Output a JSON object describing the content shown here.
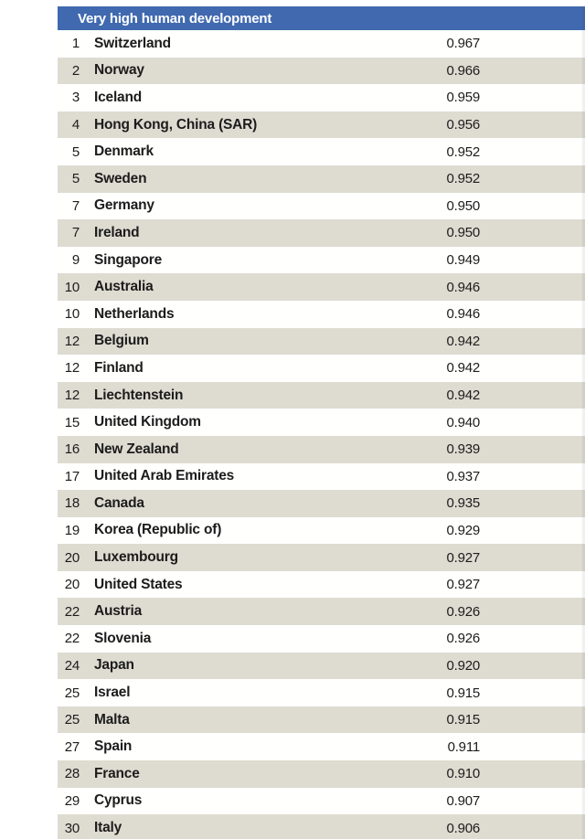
{
  "header": {
    "title": "Very high human development"
  },
  "colors": {
    "header_bg": "#4069af",
    "header_text": "#ffffff",
    "row_bg": "#fffffe",
    "row_alt_bg": "#dedbd1",
    "text": "#1c1c1c"
  },
  "table": {
    "columns": [
      "rank",
      "country",
      "hdi_value"
    ],
    "rows": [
      {
        "rank": "1",
        "country": "Switzerland",
        "value": "0.967"
      },
      {
        "rank": "2",
        "country": "Norway",
        "value": "0.966"
      },
      {
        "rank": "3",
        "country": "Iceland",
        "value": "0.959"
      },
      {
        "rank": "4",
        "country": "Hong Kong, China (SAR)",
        "value": "0.956"
      },
      {
        "rank": "5",
        "country": "Denmark",
        "value": "0.952"
      },
      {
        "rank": "5",
        "country": "Sweden",
        "value": "0.952"
      },
      {
        "rank": "7",
        "country": "Germany",
        "value": "0.950"
      },
      {
        "rank": "7",
        "country": "Ireland",
        "value": "0.950"
      },
      {
        "rank": "9",
        "country": "Singapore",
        "value": "0.949"
      },
      {
        "rank": "10",
        "country": "Australia",
        "value": "0.946"
      },
      {
        "rank": "10",
        "country": "Netherlands",
        "value": "0.946"
      },
      {
        "rank": "12",
        "country": "Belgium",
        "value": "0.942"
      },
      {
        "rank": "12",
        "country": "Finland",
        "value": "0.942"
      },
      {
        "rank": "12",
        "country": "Liechtenstein",
        "value": "0.942"
      },
      {
        "rank": "15",
        "country": "United Kingdom",
        "value": "0.940"
      },
      {
        "rank": "16",
        "country": "New Zealand",
        "value": "0.939"
      },
      {
        "rank": "17",
        "country": "United Arab Emirates",
        "value": "0.937"
      },
      {
        "rank": "18",
        "country": "Canada",
        "value": "0.935"
      },
      {
        "rank": "19",
        "country": "Korea (Republic of)",
        "value": "0.929"
      },
      {
        "rank": "20",
        "country": "Luxembourg",
        "value": "0.927"
      },
      {
        "rank": "20",
        "country": "United States",
        "value": "0.927"
      },
      {
        "rank": "22",
        "country": "Austria",
        "value": "0.926"
      },
      {
        "rank": "22",
        "country": "Slovenia",
        "value": "0.926"
      },
      {
        "rank": "24",
        "country": "Japan",
        "value": "0.920"
      },
      {
        "rank": "25",
        "country": "Israel",
        "value": "0.915"
      },
      {
        "rank": "25",
        "country": "Malta",
        "value": "0.915"
      },
      {
        "rank": "27",
        "country": "Spain",
        "value": "0.911"
      },
      {
        "rank": "28",
        "country": "France",
        "value": "0.910"
      },
      {
        "rank": "29",
        "country": "Cyprus",
        "value": "0.907"
      },
      {
        "rank": "30",
        "country": "Italy",
        "value": "0.906"
      }
    ]
  }
}
